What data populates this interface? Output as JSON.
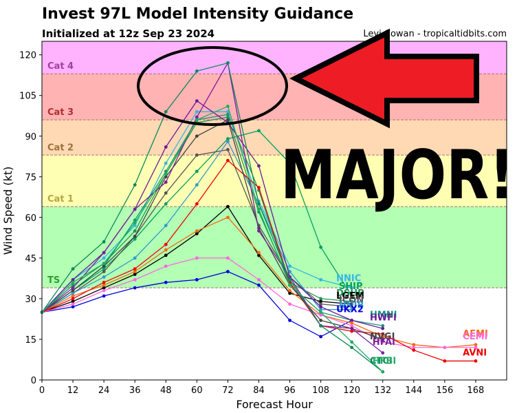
{
  "header": {
    "title": "Invest 97L Model Intensity Guidance",
    "subtitle": "Initialized at 12z Sep 23 2024",
    "credit": "Levi Cowan - tropicaltidbits.com"
  },
  "overlay": {
    "text": "MAJOR!",
    "arrow_color": "#ee1c25"
  },
  "chart_data": {
    "type": "line",
    "xlabel": "Forecast Hour",
    "ylabel": "Wind Speed (kt)",
    "xlim": [
      0,
      180
    ],
    "ylim": [
      0,
      125
    ],
    "xticks": [
      0,
      12,
      24,
      36,
      48,
      60,
      72,
      84,
      96,
      108,
      120,
      132,
      144,
      156,
      168
    ],
    "yticks": [
      0,
      15,
      30,
      45,
      60,
      75,
      90,
      105,
      120
    ],
    "bands": [
      {
        "label": "TS",
        "from": 34,
        "to": 64,
        "color": "#b3ffb3",
        "label_color": "#2ca02c"
      },
      {
        "label": "Cat 1",
        "from": 64,
        "to": 83,
        "color": "#ffffb3",
        "label_color": "#b5a642"
      },
      {
        "label": "Cat 2",
        "from": 83,
        "to": 96,
        "color": "#ffd9b3",
        "label_color": "#a0703c"
      },
      {
        "label": "Cat 3",
        "from": 96,
        "to": 113,
        "color": "#ffb3b3",
        "label_color": "#b03030"
      },
      {
        "label": "Cat 4",
        "from": 113,
        "to": 125,
        "color": "#ffb3ff",
        "label_color": "#a040a0"
      }
    ],
    "series": [
      {
        "name": "DSHP",
        "color": "#1a9850",
        "x": [
          0,
          12,
          24,
          36,
          48,
          60,
          72,
          84,
          96,
          108,
          120
        ],
        "y": [
          25,
          35,
          43,
          55,
          76,
          95,
          97,
          62,
          36,
          30,
          29
        ]
      },
      {
        "name": "SHIP",
        "color": "#00a060",
        "x": [
          0,
          12,
          24,
          36,
          48,
          60,
          72,
          84,
          96,
          108,
          120
        ],
        "y": [
          25,
          33,
          41,
          52,
          65,
          77,
          89,
          92,
          80,
          49,
          31
        ]
      },
      {
        "name": "LGEM",
        "color": "#000000",
        "x": [
          0,
          12,
          24,
          36,
          48,
          60,
          72,
          84,
          96,
          108,
          120
        ],
        "y": [
          25,
          29,
          34,
          39,
          46,
          54,
          64,
          46,
          32,
          29,
          28
        ]
      },
      {
        "name": "ICON",
        "color": "#555555",
        "x": [
          0,
          12,
          24,
          36,
          48,
          60,
          72,
          84,
          96,
          108,
          120
        ],
        "y": [
          25,
          32,
          40,
          53,
          69,
          83,
          85,
          57,
          38,
          28,
          27
        ]
      },
      {
        "name": "NNIC",
        "color": "#33b5e5",
        "x": [
          0,
          12,
          24,
          36,
          48,
          60,
          72,
          84,
          96,
          108,
          120
        ],
        "y": [
          25,
          37,
          45,
          57,
          80,
          99,
          99,
          66,
          42,
          37,
          34
        ]
      },
      {
        "name": "NNIB",
        "color": "#3399cc",
        "x": [
          0,
          12,
          24,
          36,
          48,
          60,
          72,
          84,
          96,
          108,
          120
        ],
        "y": [
          25,
          32,
          38,
          45,
          57,
          72,
          88,
          65,
          40,
          26,
          26
        ]
      },
      {
        "name": "UKX2",
        "color": "#0000dd",
        "x": [
          0,
          12,
          24,
          36,
          48,
          60,
          72,
          84,
          96,
          108,
          120
        ],
        "y": [
          25,
          27,
          31,
          34,
          36,
          37,
          40,
          35,
          22,
          16,
          22
        ]
      },
      {
        "name": "HMNI",
        "color": "#119977",
        "x": [
          0,
          12,
          24,
          36,
          48,
          60,
          72,
          84,
          96,
          108,
          120,
          132
        ],
        "y": [
          25,
          33,
          42,
          59,
          77,
          96,
          98,
          70,
          35,
          25,
          22,
          20
        ]
      },
      {
        "name": "HWFI",
        "color": "#6a1b9a",
        "x": [
          0,
          12,
          24,
          36,
          48,
          60,
          72,
          84,
          96,
          108,
          120,
          132
        ],
        "y": [
          25,
          37,
          47,
          63,
          86,
          103,
          95,
          79,
          38,
          27,
          22,
          19
        ]
      },
      {
        "name": "AEMI",
        "color": "#f26b10",
        "x": [
          0,
          12,
          24,
          36,
          48,
          60,
          72,
          84,
          96,
          108,
          120,
          132,
          144,
          156,
          168
        ],
        "y": [
          25,
          31,
          35,
          40,
          48,
          55,
          60,
          47,
          33,
          24,
          21,
          16,
          13,
          12,
          13
        ]
      },
      {
        "name": "CEMI",
        "color": "#ff66dd",
        "x": [
          0,
          12,
          24,
          36,
          48,
          60,
          72,
          84,
          96,
          108,
          120,
          132,
          144,
          156,
          168
        ],
        "y": [
          25,
          28,
          33,
          37,
          42,
          45,
          45,
          37,
          28,
          24,
          20,
          14,
          12,
          12,
          12
        ]
      },
      {
        "name": "AVNI",
        "color": "#ee0000",
        "x": [
          0,
          12,
          24,
          36,
          48,
          60,
          72,
          84,
          96,
          108,
          120,
          132,
          144,
          156,
          168
        ],
        "y": [
          25,
          30,
          36,
          41,
          50,
          65,
          81,
          71,
          36,
          20,
          18,
          17,
          11,
          7,
          7
        ]
      },
      {
        "name": "NVGI",
        "color": "#444444",
        "x": [
          0,
          12,
          24,
          36,
          48,
          60,
          72,
          84,
          96,
          108,
          120,
          132
        ],
        "y": [
          25,
          33,
          42,
          53,
          75,
          90,
          96,
          56,
          35,
          22,
          19,
          15
        ]
      },
      {
        "name": "HFAI",
        "color": "#7a1fa0",
        "x": [
          0,
          12,
          24,
          36,
          48,
          60,
          72,
          84,
          96,
          108,
          120,
          132
        ],
        "y": [
          25,
          34,
          47,
          63,
          73,
          97,
          117,
          55,
          38,
          20,
          19,
          10
        ]
      },
      {
        "name": "CTCI",
        "color": "#0a8a5a",
        "x": [
          0,
          12,
          24,
          36,
          48,
          60,
          72,
          84,
          96,
          108,
          120,
          132
        ],
        "y": [
          25,
          41,
          51,
          72,
          99,
          114,
          117,
          65,
          37,
          20,
          12,
          3
        ]
      },
      {
        "name": "HFBI",
        "color": "#22aa66",
        "x": [
          0,
          12,
          24,
          36,
          48,
          60,
          72,
          84,
          96,
          108,
          120,
          132
        ],
        "y": [
          25,
          36,
          43,
          58,
          76,
          96,
          101,
          63,
          35,
          25,
          14,
          3
        ]
      }
    ],
    "end_labels": [
      {
        "text": "NNIC",
        "color": "#33b5e5",
        "x": 114,
        "y": 36.5
      },
      {
        "text": "SHIP",
        "color": "#00a060",
        "x": 115,
        "y": 33.5
      },
      {
        "text": "DSHP",
        "color": "#1a9850",
        "x": 114,
        "y": 31
      },
      {
        "text": "LGEM",
        "color": "#000000",
        "x": 114,
        "y": 30
      },
      {
        "text": "ICON",
        "color": "#555555",
        "x": 115,
        "y": 28.5
      },
      {
        "text": "NNIB",
        "color": "#3399cc",
        "x": 115,
        "y": 26.5
      },
      {
        "text": "UKX2",
        "color": "#0000dd",
        "x": 114,
        "y": 25
      },
      {
        "text": "HMNI",
        "color": "#119977",
        "x": 127,
        "y": 23
      },
      {
        "text": "HWFI",
        "color": "#6a1b9a",
        "x": 127,
        "y": 22
      },
      {
        "text": "NVGI",
        "color": "#444444",
        "x": 127,
        "y": 15
      },
      {
        "text": "HFAI",
        "color": "#7a1fa0",
        "x": 128,
        "y": 13
      },
      {
        "text": "CTCI",
        "color": "#0a8a5a",
        "x": 127,
        "y": 6
      },
      {
        "text": "HFBI",
        "color": "#22aa66",
        "x": 128,
        "y": 6
      },
      {
        "text": "AEMI",
        "color": "#f26b10",
        "x": 163,
        "y": 16
      },
      {
        "text": "CEMI",
        "color": "#ff66dd",
        "x": 163,
        "y": 15
      },
      {
        "text": "AVNI",
        "color": "#ee0000",
        "x": 163,
        "y": 9
      }
    ]
  }
}
